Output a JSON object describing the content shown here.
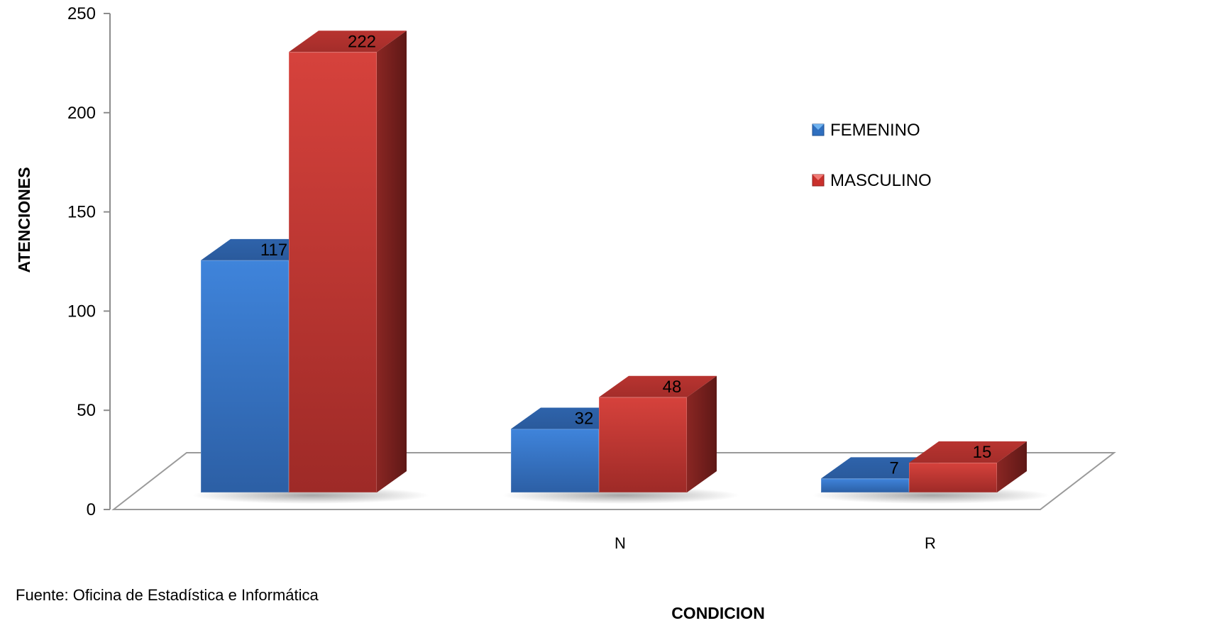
{
  "chart_data": {
    "type": "bar",
    "variant": "3d-clustered-column",
    "categories": [
      "",
      "N",
      "R"
    ],
    "series": [
      {
        "name": "FEMENINO",
        "values": [
          117,
          32,
          7
        ],
        "color": "#3a7bd5"
      },
      {
        "name": "MASCULINO",
        "values": [
          222,
          48,
          15
        ],
        "color": "#c9302c"
      }
    ],
    "xlabel": "CONDICION",
    "ylabel": "ATENCIONES",
    "ylim": [
      0,
      250
    ],
    "yticks": [
      "0",
      "50",
      "100",
      "150",
      "200",
      "250"
    ],
    "data_labels": true,
    "grid": false,
    "legend_position": "right"
  },
  "footer": {
    "source": "Fuente: Oficina de Estadística e Informática"
  }
}
